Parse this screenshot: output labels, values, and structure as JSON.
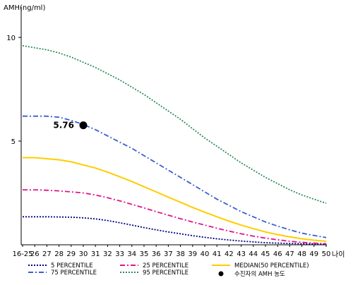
{
  "chart_data": {
    "type": "line",
    "ylabel": "AMH(ng/ml)",
    "xlabel": "나이",
    "ylim": [
      0,
      11
    ],
    "y_ticks": [
      {
        "value": 5,
        "label": "5"
      },
      {
        "value": 10,
        "label": "10"
      }
    ],
    "categories": [
      "16-25",
      "26",
      "27",
      "28",
      "29",
      "30",
      "31",
      "32",
      "33",
      "34",
      "35",
      "36",
      "37",
      "38",
      "39",
      "40",
      "41",
      "42",
      "43",
      "44",
      "45",
      "46",
      "47",
      "48",
      "49",
      "50"
    ],
    "grid": false,
    "legend_position": "bottom",
    "series": [
      {
        "name": "5 PERCENTILE",
        "color": "#000080",
        "style": "dotted",
        "values": [
          1.35,
          1.35,
          1.35,
          1.34,
          1.33,
          1.3,
          1.25,
          1.17,
          1.06,
          0.95,
          0.83,
          0.72,
          0.62,
          0.53,
          0.44,
          0.36,
          0.29,
          0.23,
          0.18,
          0.14,
          0.1,
          0.08,
          0.06,
          0.05,
          0.04,
          0.03
        ]
      },
      {
        "name": "75 PERCENTILE",
        "color": "#3a5fcd",
        "style": "dashdot",
        "values": [
          6.2,
          6.2,
          6.2,
          6.15,
          6.0,
          5.8,
          5.55,
          5.25,
          4.95,
          4.65,
          4.3,
          3.95,
          3.6,
          3.25,
          2.9,
          2.55,
          2.2,
          1.9,
          1.6,
          1.35,
          1.1,
          0.9,
          0.72,
          0.56,
          0.45,
          0.35
        ]
      },
      {
        "name": "25 PERCENTILE",
        "color": "#e0148c",
        "style": "dashdot",
        "values": [
          2.65,
          2.65,
          2.63,
          2.6,
          2.55,
          2.5,
          2.4,
          2.27,
          2.12,
          1.95,
          1.78,
          1.6,
          1.43,
          1.26,
          1.1,
          0.95,
          0.8,
          0.66,
          0.53,
          0.42,
          0.32,
          0.24,
          0.17,
          0.12,
          0.08,
          0.05
        ]
      },
      {
        "name": "95 PERCENTILE",
        "color": "#2e8b57",
        "style": "dotted",
        "values": [
          9.6,
          9.5,
          9.4,
          9.25,
          9.05,
          8.8,
          8.55,
          8.25,
          7.95,
          7.6,
          7.25,
          6.85,
          6.45,
          6.05,
          5.6,
          5.15,
          4.75,
          4.35,
          3.95,
          3.6,
          3.25,
          2.95,
          2.65,
          2.4,
          2.2,
          2.0
        ]
      },
      {
        "name": "MEDIAN(50 PERCENTILE)",
        "color": "#ffcc00",
        "style": "solid",
        "values": [
          4.2,
          4.2,
          4.15,
          4.1,
          4.0,
          3.85,
          3.7,
          3.5,
          3.28,
          3.05,
          2.8,
          2.55,
          2.3,
          2.05,
          1.8,
          1.57,
          1.35,
          1.14,
          0.95,
          0.78,
          0.62,
          0.49,
          0.38,
          0.29,
          0.22,
          0.17
        ]
      }
    ],
    "marker": {
      "x": "30",
      "y": 5.76,
      "label": "5.76",
      "legend": "수진자의 AMH 농도",
      "color": "#000000"
    }
  }
}
